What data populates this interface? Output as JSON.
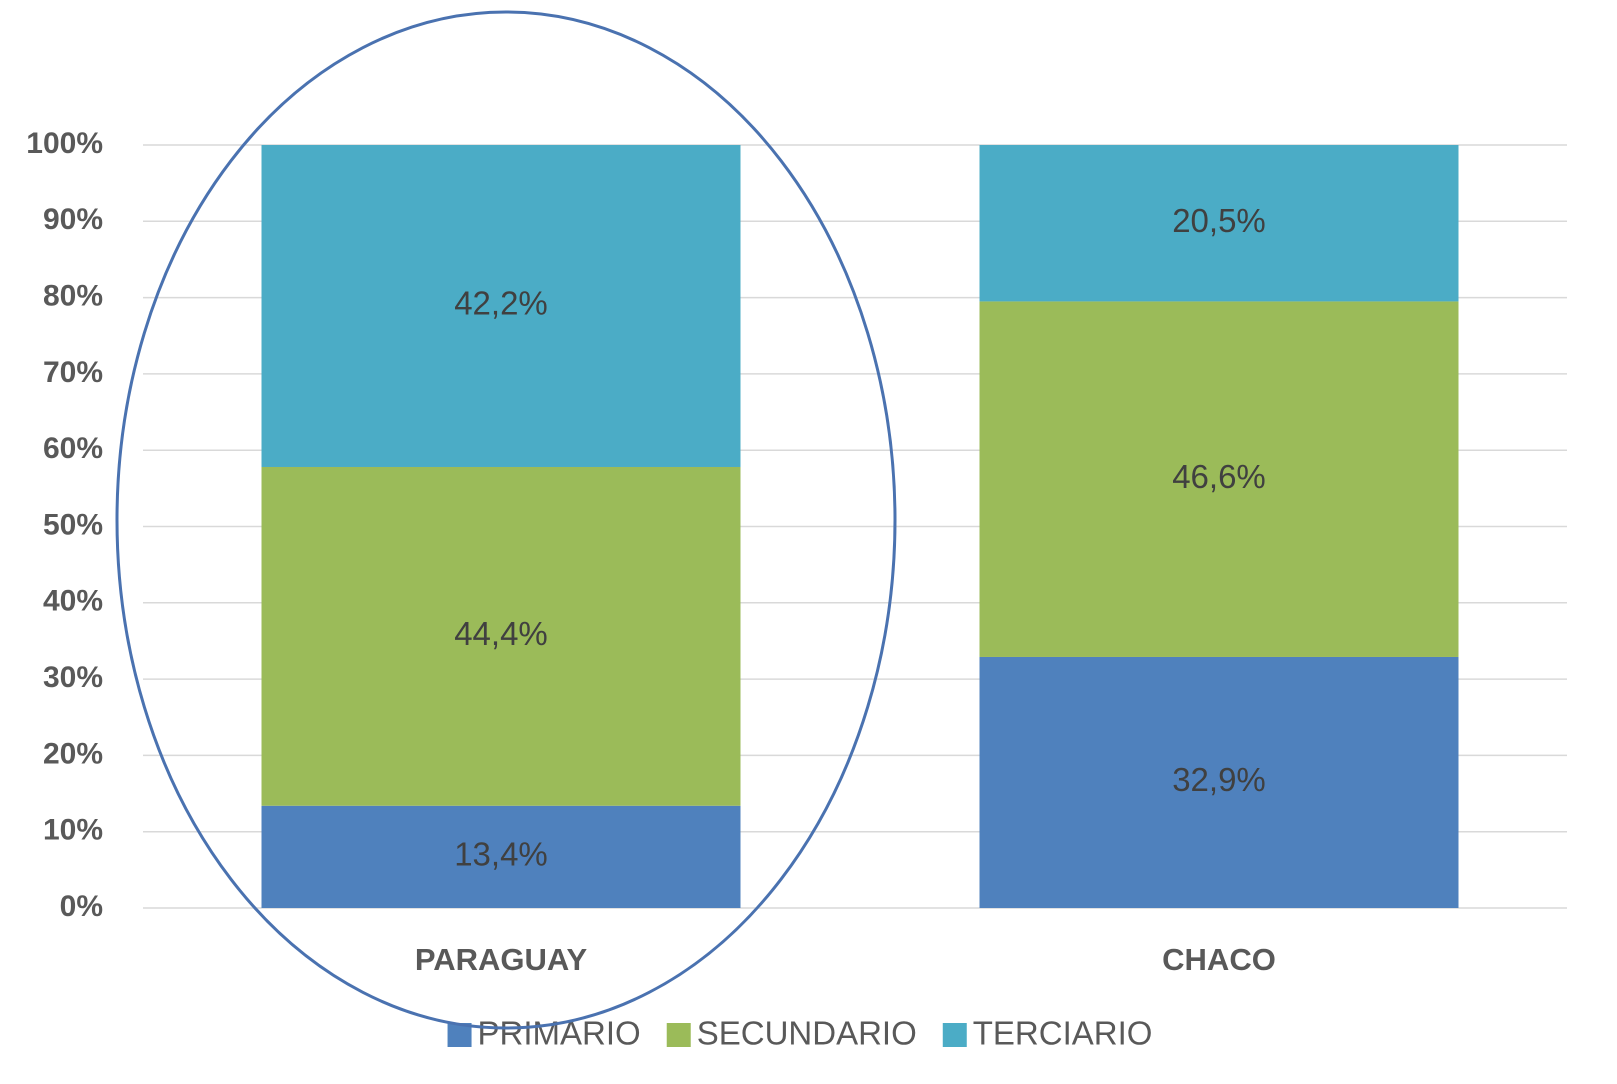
{
  "chart_data": {
    "type": "stacked_bar_100",
    "categories": [
      "PARAGUAY",
      "CHACO"
    ],
    "series": [
      {
        "name": "PRIMARIO",
        "color": "#4f81bd",
        "values": [
          13.4,
          32.9
        ],
        "value_labels": [
          "13,4%",
          "32,9%"
        ]
      },
      {
        "name": "SECUNDARIO",
        "color": "#9bbb59",
        "values": [
          44.4,
          46.6
        ],
        "value_labels": [
          "44,4%",
          "46,6%"
        ]
      },
      {
        "name": "TERCIARIO",
        "color": "#4bacc6",
        "values": [
          42.2,
          20.5
        ],
        "value_labels": [
          "42,2%",
          "20,5%"
        ]
      }
    ],
    "ylim": [
      0,
      100
    ],
    "yticks": [
      {
        "value": 0,
        "label": "0%"
      },
      {
        "value": 10,
        "label": "10%"
      },
      {
        "value": 20,
        "label": "20%"
      },
      {
        "value": 30,
        "label": "30%"
      },
      {
        "value": 40,
        "label": "40%"
      },
      {
        "value": 50,
        "label": "50%"
      },
      {
        "value": 60,
        "label": "60%"
      },
      {
        "value": 70,
        "label": "70%"
      },
      {
        "value": 80,
        "label": "80%"
      },
      {
        "value": 90,
        "label": "90%"
      },
      {
        "value": 100,
        "label": "100%"
      }
    ],
    "grid": true,
    "legend": "bottom"
  }
}
